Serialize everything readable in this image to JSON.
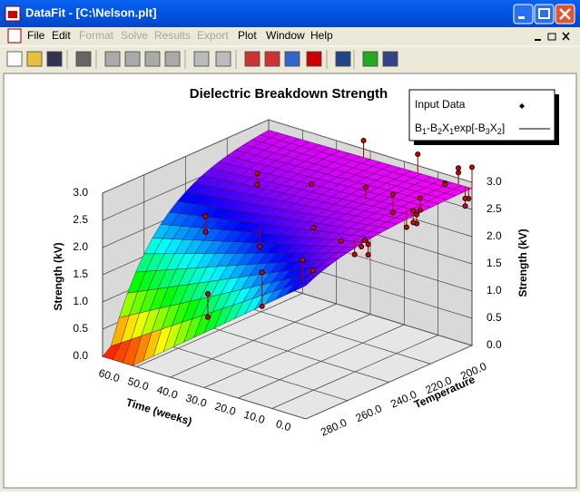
{
  "window": {
    "title": "DataFit - [C:\\Nelson.plt]"
  },
  "menu": [
    {
      "label": "File",
      "enabled": true
    },
    {
      "label": "Edit",
      "enabled": true
    },
    {
      "label": "Format",
      "enabled": false
    },
    {
      "label": "Solve",
      "enabled": false
    },
    {
      "label": "Results",
      "enabled": false
    },
    {
      "label": "Export",
      "enabled": false
    },
    {
      "label": "Plot",
      "enabled": true
    },
    {
      "label": "Window",
      "enabled": true
    },
    {
      "label": "Help",
      "enabled": true
    }
  ],
  "plot": {
    "title": "Dielectric Breakdown Strength",
    "z_label": "Strength (kV)",
    "x_label": "Time (weeks)",
    "y_label": "Temperature",
    "z_ticks": [
      "0.0",
      "0.5",
      "1.0",
      "1.5",
      "2.0",
      "2.5",
      "3.0"
    ],
    "x_ticks": [
      "60.0",
      "50.0",
      "40.0",
      "30.0",
      "20.0",
      "10.0",
      "0.0"
    ],
    "y_ticks": [
      "200.0",
      "220.0",
      "240.0",
      "260.0",
      "280.0"
    ],
    "legend": {
      "points": "Input Data",
      "formula": [
        "B",
        "1",
        "-B",
        "2",
        "X",
        "1",
        "exp[-B",
        "3",
        "X",
        "2",
        "]"
      ]
    }
  }
}
